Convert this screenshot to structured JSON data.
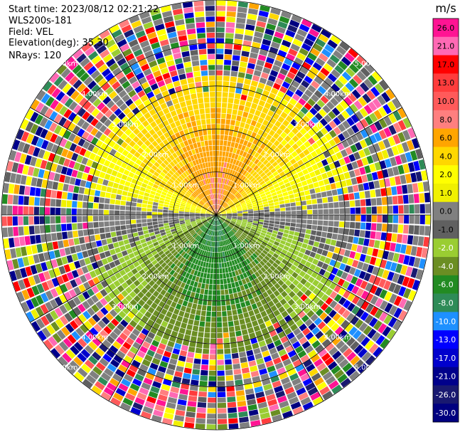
{
  "info": {
    "start_time": "Start time: 2023/08/12 02:21:22",
    "instrument": "WLS200s-181",
    "field": "Field: VEL",
    "elevation": "Elevation(deg): 35.30",
    "nrays": "NRays: 120"
  },
  "chart_data": {
    "type": "heatmap",
    "projection": "polar PPI",
    "field": "VEL",
    "units": "m/s",
    "n_rays": 120,
    "elevation_deg": 35.3,
    "range_rings_km": [
      {
        "label": "1.00km",
        "value": 1.0
      },
      {
        "label": "2.00km",
        "value": 2.0
      },
      {
        "label": "3.00km",
        "value": 3.0
      },
      {
        "label": "4.00km",
        "value": 4.0
      },
      {
        "label": "5.00km",
        "value": 5.0
      }
    ],
    "max_range_km": 5.0,
    "colorbar": {
      "title": "m/s",
      "tick_labels": [
        "26.0",
        "21.0",
        "17.0",
        "13.0",
        "10.0",
        "8.0",
        "6.0",
        "4.0",
        "2.0",
        "1.0",
        "0.0",
        "-1.0",
        "-2.0",
        "-4.0",
        "-6.0",
        "-8.0",
        "-10.0",
        "-13.0",
        "-17.0",
        "-21.0",
        "-26.0",
        "-30.0"
      ],
      "colors": [
        "#ff1493",
        "#ff69b4",
        "#ff0000",
        "#ff3c3c",
        "#ff5a5a",
        "#ff7f7f",
        "#ffa500",
        "#ffd700",
        "#ffff00",
        "#f0f000",
        "#808080",
        "#606060",
        "#9acd32",
        "#6b8e23",
        "#228b22",
        "#2e8b57",
        "#1e90ff",
        "#0000ff",
        "#0000cd",
        "#00008b",
        "#191970",
        "#000080"
      ]
    },
    "velocity_pattern": {
      "near_north": "positive (yellow-orange-salmon, 1.0 to 10.0)",
      "near_south": "negative (green, -1.0 to -8.0)",
      "east_west_axis": "near zero (gray)",
      "outer_ring": "noise (all colors)"
    }
  }
}
